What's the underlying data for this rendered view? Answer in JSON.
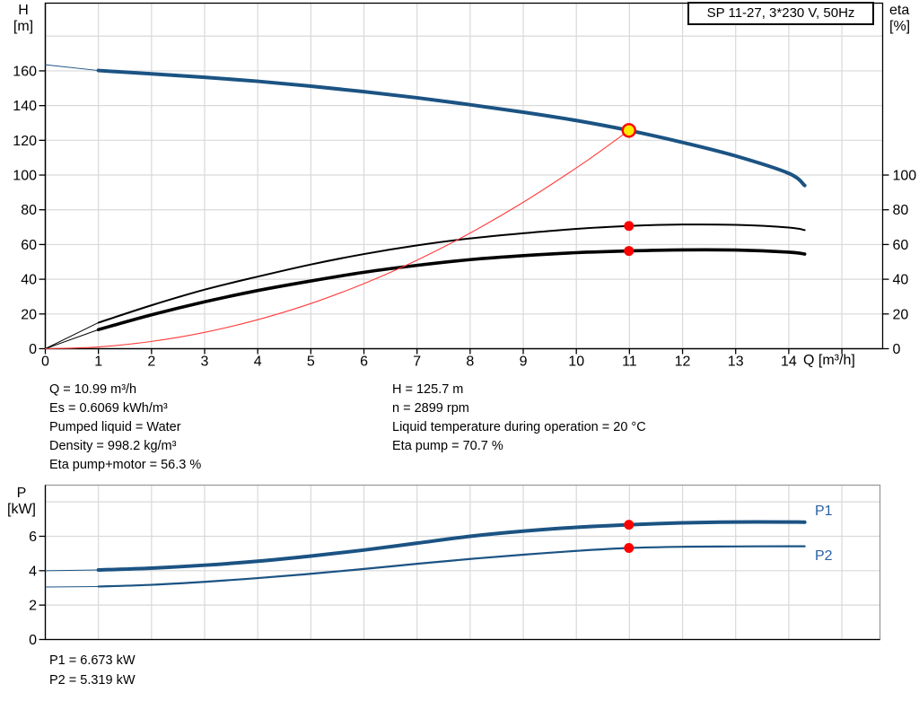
{
  "header": {
    "title_box": "SP 11-27, 3*230 V, 50Hz"
  },
  "top_chart": {
    "left_axis_title": [
      "H",
      "[m]"
    ],
    "right_axis_title": [
      "eta",
      "[%]"
    ],
    "x_axis_title": "Q [m³/h]"
  },
  "bottom_chart": {
    "left_axis_title": [
      "P",
      "[kW]"
    ],
    "p1_label": "P1",
    "p2_label": "P2"
  },
  "info": {
    "left": [
      "Q = 10.99 m³/h",
      "Es = 0.6069 kWh/m³",
      "Pumped liquid = Water",
      "Density = 998.2 kg/m³",
      "Eta pump+motor = 56.3 %"
    ],
    "right": [
      "H = 125.7 m",
      "n = 2899 rpm",
      "Liquid temperature during operation = 20 °C",
      "Eta pump = 70.7 %"
    ],
    "bottom": [
      "P1 = 6.673 kW",
      "P2 = 5.319 kW"
    ]
  },
  "colors": {
    "blue": "#1b5383",
    "label_blue": "#2a5fa5",
    "black": "#000000",
    "red": "#ff0000",
    "system_red": "#ff3b3b",
    "yellow": "#ffeb00",
    "grid": "#d9d9d9",
    "axis": "#000000",
    "border_grey": "#9a9a9a"
  },
  "chart_data": [
    {
      "type": "line",
      "title": "SP 11-27, 3*230 V, 50Hz",
      "xlabel": "Q [m³/h]",
      "ylabel_left": "H [m]",
      "ylabel_right": "eta [%]",
      "xlim": [
        0,
        15.77
      ],
      "ylim_left": [
        0,
        199
      ],
      "ylim_right": [
        0,
        199
      ],
      "right_axis_labeled_span": [
        0,
        100
      ],
      "grid": true,
      "legend": "none",
      "x_tick_labels": [
        0,
        1,
        2,
        3,
        4,
        5,
        6,
        7,
        8,
        9,
        10,
        11,
        12,
        13,
        14
      ],
      "x_tick_marks": [
        0,
        1,
        2,
        3,
        4,
        5,
        6,
        7,
        8,
        9,
        10,
        11,
        12,
        13,
        14,
        15
      ],
      "x_gridlines": [
        1,
        2,
        3,
        4,
        5,
        6,
        7,
        8,
        9,
        10,
        11,
        12,
        13,
        14,
        15
      ],
      "y_ticks_left": [
        0,
        20,
        40,
        60,
        80,
        100,
        120,
        140,
        160
      ],
      "y_gridlines": [
        20,
        40,
        60,
        80,
        100,
        120,
        140,
        160,
        180
      ],
      "y_ticks_right": [
        0,
        20,
        40,
        60,
        80,
        100
      ],
      "series": [
        {
          "id": "eta-pump-curve",
          "name": "Eta pump",
          "axis": "right",
          "color": "black",
          "width": 2,
          "thin_until": 1,
          "points": [
            [
              0,
              0
            ],
            [
              1,
              15
            ],
            [
              2,
              25
            ],
            [
              3,
              34
            ],
            [
              4,
              41.5
            ],
            [
              5,
              48.5
            ],
            [
              6,
              54.5
            ],
            [
              7,
              59.5
            ],
            [
              8,
              63.5
            ],
            [
              9,
              66.5
            ],
            [
              10,
              69
            ],
            [
              10.99,
              70.7
            ],
            [
              12,
              71.5
            ],
            [
              13,
              71.3
            ],
            [
              14,
              69.8
            ],
            [
              14.3,
              68.3
            ]
          ]
        },
        {
          "id": "eta-pump-motor-curve",
          "name": "Eta pump+motor",
          "axis": "right",
          "color": "black",
          "width": 3.6,
          "thin_until": 1,
          "points": [
            [
              0,
              0
            ],
            [
              1,
              11
            ],
            [
              2,
              19.5
            ],
            [
              3,
              27
            ],
            [
              4,
              33.5
            ],
            [
              5,
              39
            ],
            [
              6,
              44
            ],
            [
              7,
              48
            ],
            [
              8,
              51.3
            ],
            [
              9,
              53.6
            ],
            [
              10,
              55.3
            ],
            [
              10.99,
              56.3
            ],
            [
              12,
              56.9
            ],
            [
              13,
              56.8
            ],
            [
              14,
              55.6
            ],
            [
              14.3,
              54.5
            ]
          ]
        },
        {
          "id": "system-curve",
          "name": "System curve to duty point",
          "axis": "left",
          "color": "system_red",
          "width": 1.1,
          "thin_until": 0,
          "points": [
            [
              0,
              0
            ],
            [
              1,
              1.0
            ],
            [
              2,
              4.2
            ],
            [
              3,
              9.4
            ],
            [
              4,
              16.7
            ],
            [
              5,
              26.0
            ],
            [
              6,
              37.5
            ],
            [
              7,
              51.0
            ],
            [
              8,
              66.6
            ],
            [
              9,
              84.3
            ],
            [
              10,
              104.1
            ],
            [
              10.5,
              114.8
            ],
            [
              10.99,
              125.7
            ]
          ]
        },
        {
          "id": "qh-curve",
          "name": "Pump curve SP 11-27 (QH)",
          "axis": "left",
          "color": "blue",
          "width": 4,
          "thin_until": 1,
          "points": [
            [
              0,
              163.5
            ],
            [
              1,
              160.2
            ],
            [
              2,
              158.3
            ],
            [
              3,
              156.3
            ],
            [
              4,
              154.0
            ],
            [
              5,
              151.2
            ],
            [
              6,
              148.0
            ],
            [
              7,
              144.5
            ],
            [
              8,
              140.5
            ],
            [
              9,
              136.2
            ],
            [
              10,
              131.4
            ],
            [
              10.99,
              125.7
            ],
            [
              12,
              118.8
            ],
            [
              13,
              111.0
            ],
            [
              14,
              101.0
            ],
            [
              14.3,
              94.0
            ]
          ]
        }
      ],
      "markers": [
        {
          "id": "duty-point",
          "name": "Duty point Q=10.99 H=125.7",
          "style": "duty",
          "x": 10.99,
          "y": 125.7,
          "axis": "left"
        },
        {
          "id": "eta-pump-point",
          "name": "Eta pump 70.7 %",
          "style": "dot",
          "x": 10.99,
          "y": 70.7,
          "axis": "right"
        },
        {
          "id": "eta-pump-motor-point",
          "name": "Eta pump+motor 56.3 %",
          "style": "dot",
          "x": 10.99,
          "y": 56.3,
          "axis": "right"
        }
      ]
    },
    {
      "type": "line",
      "title": "",
      "xlabel": "",
      "ylabel_left": "P [kW]",
      "xlim": [
        0,
        15.72
      ],
      "ylim_left": [
        0,
        8.97
      ],
      "grid": true,
      "x_gridlines": [
        1,
        2,
        3,
        4,
        5,
        6,
        7,
        8,
        9,
        10,
        11,
        12,
        13,
        14,
        15
      ],
      "y_ticks_left": [
        0,
        2,
        4,
        6
      ],
      "y_gridlines": [
        2,
        4,
        6,
        8
      ],
      "series": [
        {
          "id": "p1-curve",
          "name": "P1",
          "axis": "left",
          "color": "blue",
          "width": 4,
          "thin_until": 1,
          "points": [
            [
              0,
              4.0
            ],
            [
              1,
              4.04
            ],
            [
              2,
              4.15
            ],
            [
              3,
              4.32
            ],
            [
              4,
              4.55
            ],
            [
              5,
              4.85
            ],
            [
              6,
              5.2
            ],
            [
              7,
              5.6
            ],
            [
              8,
              6.0
            ],
            [
              9,
              6.3
            ],
            [
              10,
              6.52
            ],
            [
              10.99,
              6.673
            ],
            [
              12,
              6.78
            ],
            [
              13,
              6.83
            ],
            [
              14,
              6.83
            ],
            [
              14.3,
              6.82
            ]
          ]
        },
        {
          "id": "p2-curve",
          "name": "P2",
          "axis": "left",
          "color": "blue",
          "width": 2.2,
          "thin_until": 1,
          "points": [
            [
              0,
              3.05
            ],
            [
              1,
              3.08
            ],
            [
              2,
              3.18
            ],
            [
              3,
              3.35
            ],
            [
              4,
              3.57
            ],
            [
              5,
              3.82
            ],
            [
              6,
              4.1
            ],
            [
              7,
              4.4
            ],
            [
              8,
              4.68
            ],
            [
              9,
              4.93
            ],
            [
              10,
              5.15
            ],
            [
              10.99,
              5.319
            ],
            [
              12,
              5.39
            ],
            [
              13,
              5.41
            ],
            [
              14,
              5.42
            ],
            [
              14.3,
              5.42
            ]
          ]
        }
      ],
      "markers": [
        {
          "id": "p1-point",
          "name": "P1 = 6.673 kW",
          "style": "dot",
          "x": 10.99,
          "y": 6.673,
          "axis": "left"
        },
        {
          "id": "p2-point",
          "name": "P2 = 5.319 kW",
          "style": "dot",
          "x": 10.99,
          "y": 5.319,
          "axis": "left"
        }
      ]
    }
  ]
}
